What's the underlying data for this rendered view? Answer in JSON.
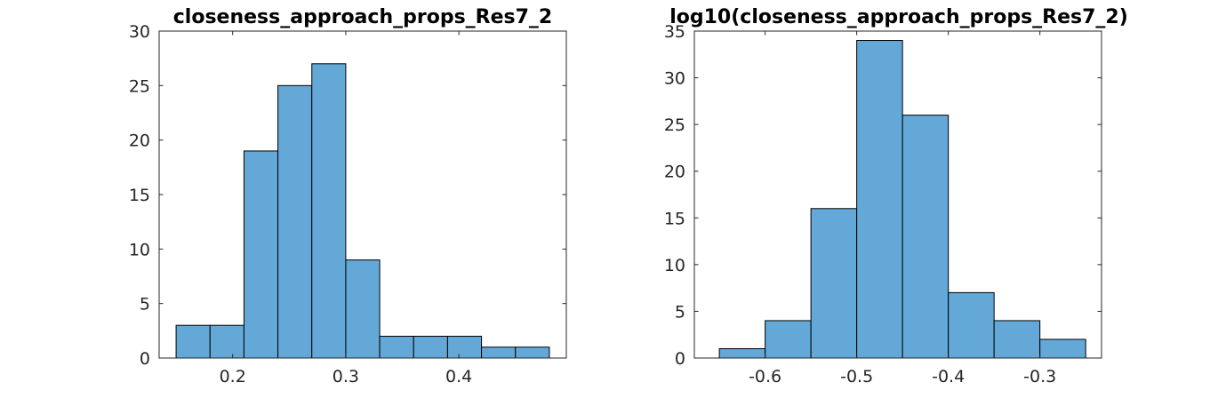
{
  "chart_data": [
    {
      "type": "bar",
      "title": "closeness_approach_props_Res7_2",
      "xlabel": "",
      "ylabel": "",
      "bin_edges": [
        0.15,
        0.18,
        0.21,
        0.24,
        0.27,
        0.3,
        0.33,
        0.36,
        0.39,
        0.42,
        0.45,
        0.48
      ],
      "values": [
        3,
        3,
        19,
        25,
        27,
        9,
        2,
        2,
        2,
        1,
        1
      ],
      "xlim": [
        0.135,
        0.495
      ],
      "ylim": [
        0,
        30
      ],
      "xticks": [
        0.2,
        0.3,
        0.4
      ],
      "xtick_labels": [
        "0.2",
        "0.3",
        "0.4"
      ],
      "yticks": [
        0,
        5,
        10,
        15,
        20,
        25,
        30
      ],
      "ytick_labels": [
        "0",
        "5",
        "10",
        "15",
        "20",
        "25",
        "30"
      ],
      "bar_color": "#64a8d7",
      "grid": false
    },
    {
      "type": "bar",
      "title": "log10(closeness_approach_props_Res7_2)",
      "xlabel": "",
      "ylabel": "",
      "bin_edges": [
        -0.65,
        -0.6,
        -0.55,
        -0.5,
        -0.45,
        -0.4,
        -0.35,
        -0.3,
        -0.25
      ],
      "values": [
        1,
        4,
        16,
        34,
        26,
        7,
        4,
        2
      ],
      "xlim": [
        -0.6773,
        -0.2327
      ],
      "ylim": [
        0,
        35
      ],
      "xticks": [
        -0.6,
        -0.5,
        -0.4,
        -0.3
      ],
      "xtick_labels": [
        "-0.6",
        "-0.5",
        "-0.4",
        "-0.3"
      ],
      "yticks": [
        0,
        5,
        10,
        15,
        20,
        25,
        30,
        35
      ],
      "ytick_labels": [
        "0",
        "5",
        "10",
        "15",
        "20",
        "25",
        "30",
        "35"
      ],
      "bar_color": "#64a8d7",
      "grid": false
    }
  ]
}
